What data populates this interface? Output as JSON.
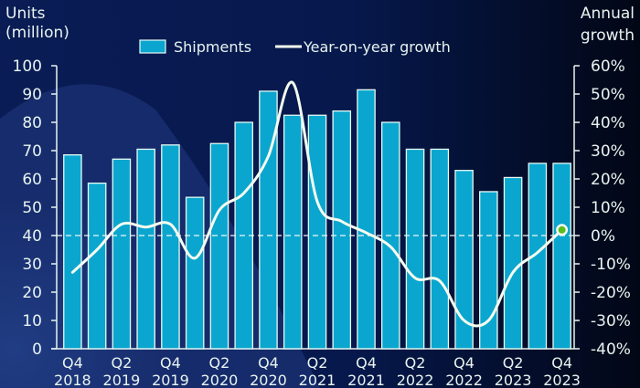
{
  "chart_data": {
    "type": "bar",
    "title": "",
    "left_axis_label": [
      "Units",
      "(million)"
    ],
    "right_axis_label": [
      "Annual",
      "growth"
    ],
    "ylim_left": [
      0,
      100
    ],
    "ylim_right": [
      -40,
      60
    ],
    "left_ticks": [
      "0",
      "10",
      "20",
      "30",
      "40",
      "50",
      "60",
      "70",
      "80",
      "90",
      "100"
    ],
    "right_ticks": [
      "-40%",
      "-30%",
      "-20%",
      "-10%",
      "0%",
      "10%",
      "20%",
      "30%",
      "40%",
      "50%",
      "60%"
    ],
    "x_tick_labels": [
      {
        "q": "Q4",
        "y": "2018",
        "index": 0
      },
      {
        "q": "Q2",
        "y": "2019",
        "index": 2
      },
      {
        "q": "Q4",
        "y": "2019",
        "index": 4
      },
      {
        "q": "Q2",
        "y": "2020",
        "index": 6
      },
      {
        "q": "Q4",
        "y": "2020",
        "index": 8
      },
      {
        "q": "Q2",
        "y": "2021",
        "index": 10
      },
      {
        "q": "Q4",
        "y": "2021",
        "index": 12
      },
      {
        "q": "Q2",
        "y": "2022",
        "index": 14
      },
      {
        "q": "Q4",
        "y": "2022",
        "index": 16
      },
      {
        "q": "Q2",
        "y": "2023",
        "index": 18
      },
      {
        "q": "Q4",
        "y": "2023",
        "index": 20
      }
    ],
    "categories": [
      "Q4 2018",
      "Q1 2019",
      "Q2 2019",
      "Q3 2019",
      "Q4 2019",
      "Q1 2020",
      "Q2 2020",
      "Q3 2020",
      "Q4 2020",
      "Q1 2021",
      "Q2 2021",
      "Q3 2021",
      "Q4 2021",
      "Q1 2022",
      "Q2 2022",
      "Q3 2022",
      "Q4 2022",
      "Q1 2023",
      "Q2 2023",
      "Q3 2023",
      "Q4 2023"
    ],
    "series": [
      {
        "name": "Shipments",
        "type": "bar",
        "axis": "left",
        "color": "#0aa6cf",
        "values": [
          68.5,
          58.5,
          67,
          70.5,
          72,
          53.5,
          72.5,
          80,
          91,
          82.5,
          82.5,
          84,
          91.5,
          80,
          70.5,
          70.5,
          63,
          55.5,
          60.5,
          65.5,
          65.5
        ]
      },
      {
        "name": "Year-on-year growth",
        "type": "line",
        "axis": "right",
        "color": "#f4fbef",
        "values": [
          -13,
          -5,
          4,
          3,
          4,
          -8,
          9,
          15,
          28,
          54,
          12,
          5,
          1,
          -4,
          -15,
          -16,
          -30,
          -30,
          -13,
          -6,
          2
        ]
      }
    ],
    "reference_line": {
      "value": 0,
      "axis": "right",
      "style": "dashed"
    },
    "highlight_point": {
      "index": 20,
      "color": "#5cbd1e"
    },
    "legend": {
      "position": "top",
      "items": [
        "Shipments",
        "Year-on-year growth"
      ]
    },
    "grid": false
  },
  "colors": {
    "background_dark": "#04103a",
    "background_light": "#1c3577",
    "bar_fill": "#0aa6cf",
    "bar_stroke": "#e6fbf4",
    "axis": "#e8f4f0",
    "line": "#f4fbef",
    "highlight": "#5cbd1e"
  }
}
